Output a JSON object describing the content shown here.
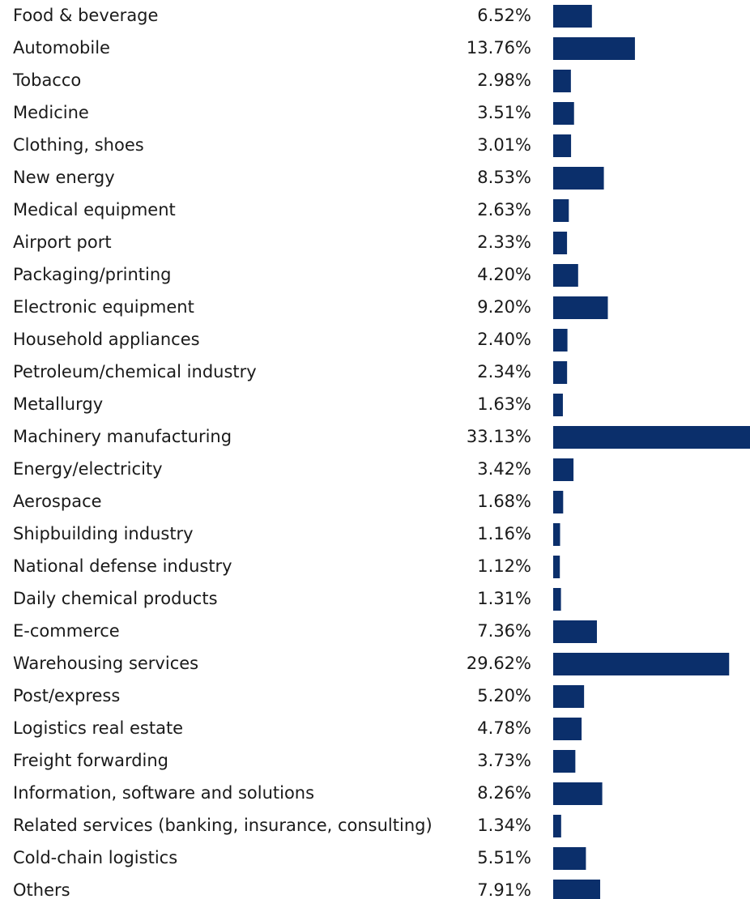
{
  "chart_data": {
    "type": "bar",
    "orientation": "horizontal",
    "color": "#0b2f6b",
    "categories": [
      "Food & beverage",
      "Automobile",
      "Tobacco",
      "Medicine",
      "Clothing, shoes",
      "New energy",
      "Medical equipment",
      "Airport port",
      "Packaging/printing",
      "Electronic equipment",
      "Household appliances",
      "Petroleum/chemical industry",
      "Metallurgy",
      "Machinery manufacturing",
      "Energy/electricity",
      "Aerospace",
      "Shipbuilding industry",
      "National defense industry",
      "Daily chemical products",
      "E-commerce",
      "Warehousing services",
      "Post/express",
      "Logistics real estate",
      "Freight forwarding",
      "Information, software and solutions",
      "Related services (banking, insurance, consulting)",
      "Cold-chain logistics",
      "Others"
    ],
    "values": [
      6.52,
      13.76,
      2.98,
      3.51,
      3.01,
      8.53,
      2.63,
      2.33,
      4.2,
      9.2,
      2.4,
      2.34,
      1.63,
      33.13,
      3.42,
      1.68,
      1.16,
      1.12,
      1.31,
      7.36,
      29.62,
      5.2,
      4.78,
      3.73,
      8.26,
      1.34,
      5.51,
      7.91
    ],
    "value_labels": [
      "6.52%",
      "13.76%",
      "2.98%",
      "3.51%",
      "3.01%",
      "8.53%",
      "2.63%",
      "2.33%",
      "4.20%",
      "9.20%",
      "2.40%",
      "2.34%",
      "1.63%",
      "33.13%",
      "3.42%",
      "1.68%",
      "1.16%",
      "1.12%",
      "1.31%",
      "7.36%",
      "29.62%",
      "5.20%",
      "4.78%",
      "3.73%",
      "8.26%",
      "1.34%",
      "5.51%",
      "7.91%"
    ]
  }
}
